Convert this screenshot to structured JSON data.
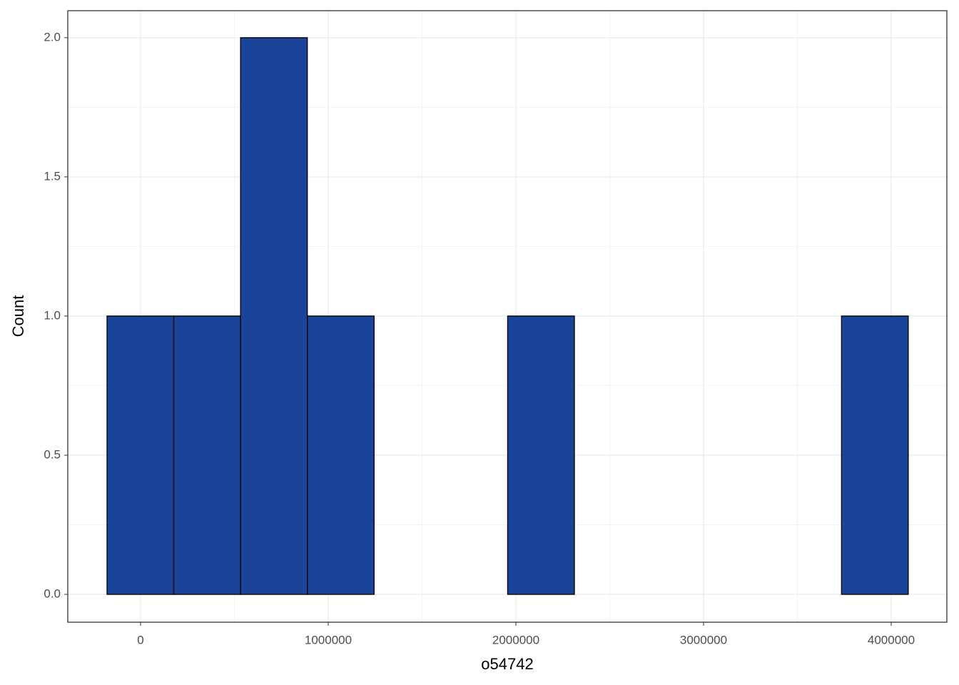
{
  "chart_data": {
    "type": "histogram",
    "x_label": "o54742",
    "y_label": "Count",
    "bins": [
      -178700,
      177100,
      532900,
      888700,
      1244500,
      1600300,
      1956100,
      2311900,
      2667700,
      3023500,
      3379300,
      3735100,
      4090900
    ],
    "values": [
      1,
      1,
      2,
      1,
      0,
      0,
      1,
      0,
      0,
      0,
      0,
      1
    ],
    "color": "#1a4499",
    "xlim": [
      -387800,
      4296600
    ],
    "xticks": [
      0,
      1000000,
      2000000,
      3000000,
      4000000
    ],
    "ylim": [
      -0.1,
      2.097
    ],
    "yticks": [
      {
        "value": 0,
        "label": "0.0"
      },
      {
        "value": 0.5,
        "label": "0.5"
      },
      {
        "value": 1,
        "label": "1.0"
      },
      {
        "value": 1.5,
        "label": "1.5"
      },
      {
        "value": 2,
        "label": "2.0"
      }
    ],
    "grid": true
  }
}
